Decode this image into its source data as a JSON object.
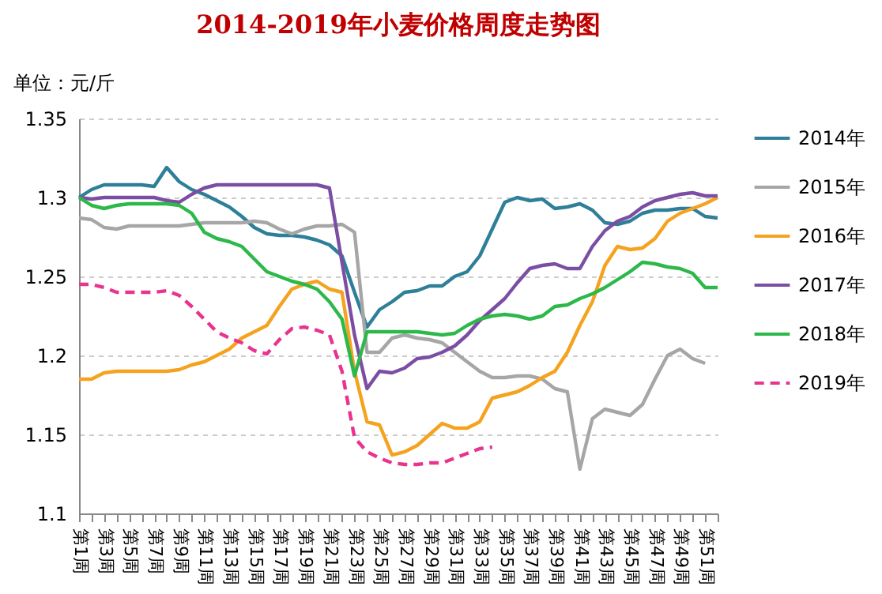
{
  "chart_data": {
    "type": "line",
    "title": "2014-2019年小麦价格周度走势图",
    "ylabel": "单位：元/斤",
    "categories": [
      "第1周",
      null,
      "第3周",
      null,
      "第5周",
      null,
      "第7周",
      null,
      "第9周",
      null,
      "第11周",
      null,
      "第13周",
      null,
      "第15周",
      null,
      "第17周",
      null,
      "第19周",
      null,
      "第21周",
      null,
      "第23周",
      null,
      "第25周",
      null,
      "第27周",
      null,
      "第29周",
      null,
      "第31周",
      null,
      "第33周",
      null,
      "第35周",
      null,
      "第37周",
      null,
      "第39周",
      null,
      "第41周",
      null,
      "第43周",
      null,
      "第45周",
      null,
      "第47周",
      null,
      "第49周",
      null,
      "第51周",
      null
    ],
    "ylim": [
      1.1,
      1.35
    ],
    "yticks": [
      1.1,
      1.15,
      1.2,
      1.25,
      1.3,
      1.35
    ],
    "grid": "y",
    "legend": "right",
    "marker": "none",
    "line_style": "solid",
    "series": [
      {
        "name": "2014年",
        "color": "#2e7f98",
        "values": [
          1.3,
          1.305,
          1.308,
          1.308,
          1.308,
          1.308,
          1.307,
          1.319,
          1.31,
          1.305,
          1.302,
          1.298,
          1.294,
          1.288,
          1.281,
          1.277,
          1.276,
          1.276,
          1.275,
          1.273,
          1.27,
          1.263,
          1.24,
          1.218,
          1.229,
          1.234,
          1.24,
          1.241,
          1.244,
          1.244,
          1.25,
          1.253,
          1.263,
          1.28,
          1.297,
          1.3,
          1.298,
          1.299,
          1.293,
          1.294,
          1.296,
          1.292,
          1.284,
          1.283,
          1.285,
          1.29,
          1.292,
          1.292,
          1.293,
          1.293,
          1.288,
          1.287
        ]
      },
      {
        "name": "2015年",
        "color": "#a6a6a6",
        "values": [
          1.287,
          1.286,
          1.281,
          1.28,
          1.282,
          1.282,
          1.282,
          1.282,
          1.282,
          1.283,
          1.284,
          1.284,
          1.284,
          1.284,
          1.285,
          1.284,
          1.28,
          1.277,
          1.28,
          1.282,
          1.282,
          1.283,
          1.278,
          1.202,
          1.202,
          1.211,
          1.213,
          1.211,
          1.21,
          1.208,
          1.202,
          1.196,
          1.19,
          1.186,
          1.186,
          1.187,
          1.187,
          1.185,
          1.179,
          1.177,
          1.128,
          1.16,
          1.166,
          1.164,
          1.162,
          1.169,
          1.185,
          1.2,
          1.204,
          1.198,
          1.195,
          null
        ]
      },
      {
        "name": "2016年",
        "color": "#f5a21f",
        "values": [
          1.185,
          1.185,
          1.189,
          1.19,
          1.19,
          1.19,
          1.19,
          1.19,
          1.191,
          1.194,
          1.196,
          1.2,
          1.204,
          1.211,
          1.215,
          1.219,
          1.231,
          1.242,
          1.245,
          1.247,
          1.242,
          1.24,
          1.19,
          1.158,
          1.156,
          1.137,
          1.139,
          1.143,
          1.15,
          1.157,
          1.154,
          1.154,
          1.158,
          1.173,
          1.175,
          1.177,
          1.181,
          1.186,
          1.19,
          1.202,
          1.219,
          1.234,
          1.257,
          1.269,
          1.267,
          1.268,
          1.274,
          1.285,
          1.29,
          1.293,
          1.296,
          1.3
        ]
      },
      {
        "name": "2017年",
        "color": "#7b4ea3",
        "values": [
          1.3,
          1.299,
          1.3,
          1.3,
          1.3,
          1.3,
          1.3,
          1.298,
          1.297,
          1.302,
          1.306,
          1.308,
          1.308,
          1.308,
          1.308,
          1.308,
          1.308,
          1.308,
          1.308,
          1.308,
          1.306,
          1.259,
          1.213,
          1.179,
          1.19,
          1.189,
          1.192,
          1.198,
          1.199,
          1.202,
          1.206,
          1.213,
          1.222,
          1.229,
          1.236,
          1.246,
          1.255,
          1.257,
          1.258,
          1.255,
          1.255,
          1.269,
          1.279,
          1.285,
          1.288,
          1.294,
          1.298,
          1.3,
          1.302,
          1.303,
          1.301,
          1.301
        ]
      },
      {
        "name": "2018年",
        "color": "#2db84a",
        "values": [
          1.3,
          1.295,
          1.293,
          1.295,
          1.296,
          1.296,
          1.296,
          1.296,
          1.295,
          1.29,
          1.278,
          1.274,
          1.272,
          1.269,
          1.261,
          1.253,
          1.25,
          1.247,
          1.245,
          1.242,
          1.234,
          1.223,
          1.187,
          1.215,
          1.215,
          1.215,
          1.215,
          1.215,
          1.214,
          1.213,
          1.214,
          1.219,
          1.223,
          1.225,
          1.226,
          1.225,
          1.223,
          1.225,
          1.231,
          1.232,
          1.236,
          1.239,
          1.243,
          1.248,
          1.253,
          1.259,
          1.258,
          1.256,
          1.255,
          1.252,
          1.243,
          1.243
        ]
      },
      {
        "name": "2019年",
        "color": "#e8348f",
        "line_style": "dashed",
        "values": [
          1.245,
          1.245,
          1.243,
          1.24,
          1.24,
          1.24,
          1.24,
          1.241,
          1.238,
          1.231,
          1.223,
          1.215,
          1.211,
          1.208,
          1.203,
          1.201,
          1.21,
          1.217,
          1.218,
          1.216,
          1.213,
          1.19,
          1.148,
          1.139,
          1.135,
          1.132,
          1.131,
          1.131,
          1.132,
          1.132,
          1.135,
          1.138,
          1.141,
          1.142,
          null,
          null,
          null,
          null,
          null,
          null,
          null,
          null,
          null,
          null,
          null,
          null,
          null,
          null,
          null,
          null,
          null,
          null
        ]
      }
    ]
  }
}
